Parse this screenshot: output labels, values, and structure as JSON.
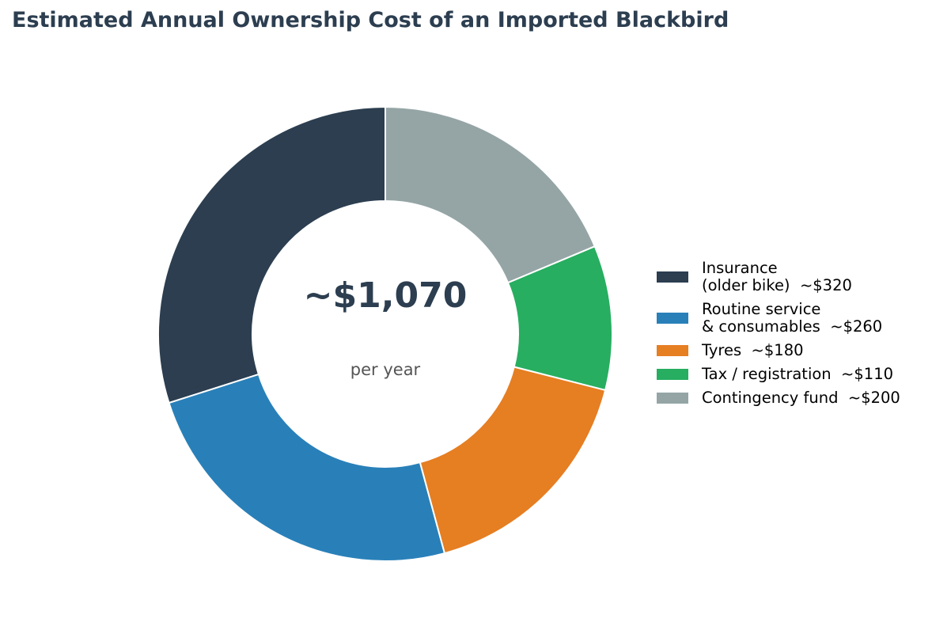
{
  "title": "Estimated Annual Ownership Cost of an Imported Blackbird",
  "center": {
    "value": "~$1,070",
    "subtitle": "per year"
  },
  "chart_data": {
    "type": "pie",
    "donut": true,
    "title": "Estimated Annual Ownership Cost of an Imported Blackbird",
    "start": "top, counter-clockwise",
    "legend_position": "right",
    "slices": [
      {
        "label": "Insurance\n(older bike)  ~$320",
        "value": 320,
        "color": "#2c3e50"
      },
      {
        "label": "Routine service\n& consumables  ~$260",
        "value": 260,
        "color": "#2980b9"
      },
      {
        "label": "Tyres  ~$180",
        "value": 180,
        "color": "#e67e22"
      },
      {
        "label": "Tax / registration  ~$110",
        "value": 110,
        "color": "#27ae60"
      },
      {
        "label": "Contingency fund  ~$200",
        "value": 200,
        "color": "#95a5a6"
      }
    ]
  }
}
